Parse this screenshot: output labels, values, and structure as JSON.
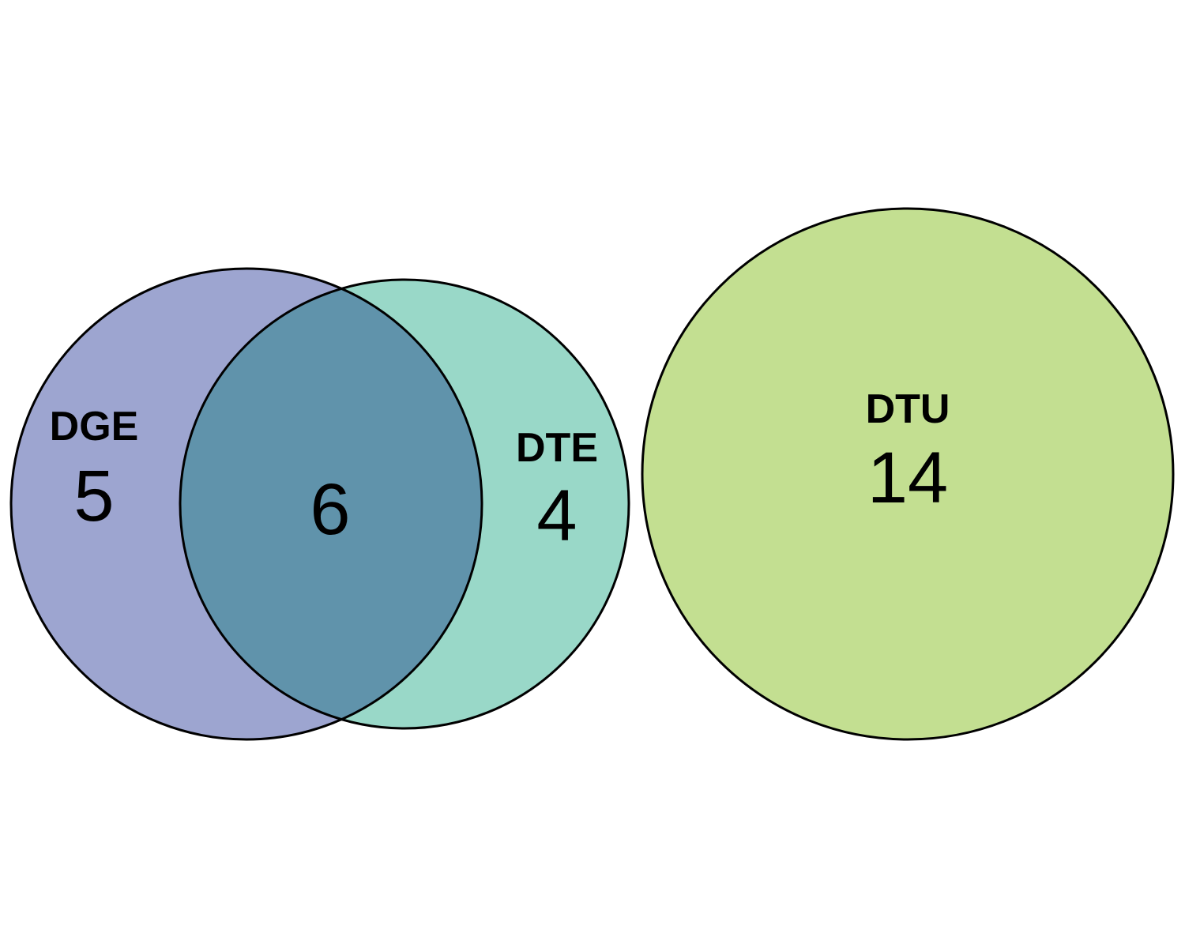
{
  "sets": {
    "dge": {
      "name": "DGE",
      "only_count": "5",
      "color": "#9da5d0"
    },
    "dte": {
      "name": "DTE",
      "only_count": "4",
      "color": "#99d8c8"
    },
    "dtu": {
      "name": "DTU",
      "only_count": "14",
      "color": "#c3df91"
    }
  },
  "intersections": {
    "dge_dte": {
      "count": "6",
      "color": "#6093ab"
    }
  },
  "outline_color": "#000000",
  "background": "#ffffff"
}
